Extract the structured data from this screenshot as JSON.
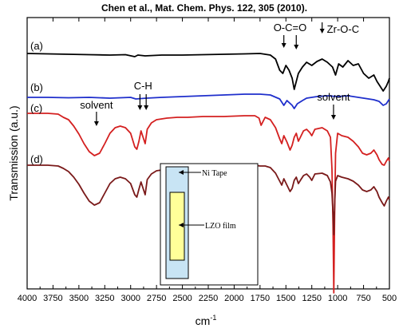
{
  "citation": "Chen et al., Mat. Chem. Phys. 122, 305 (2010).",
  "chart_data": {
    "type": "line",
    "title": "",
    "xlabel": "cm",
    "xlabel_superscript": "-1",
    "ylabel": "Transmission (a.u.)",
    "xlim": [
      4000,
      500
    ],
    "x_reversed": true,
    "x_ticks": [
      4000,
      3750,
      3500,
      3250,
      3000,
      2750,
      2500,
      2250,
      2000,
      1750,
      1500,
      1250,
      1000,
      750,
      500
    ],
    "y_ticks_shown": false,
    "grid": false,
    "series": [
      {
        "label": "(a)",
        "color": "#000000",
        "points": [
          [
            4000,
            45
          ],
          [
            3800,
            45.5
          ],
          [
            3600,
            46
          ],
          [
            3400,
            46.5
          ],
          [
            3200,
            47
          ],
          [
            3050,
            46.5
          ],
          [
            2960,
            49
          ],
          [
            2930,
            47
          ],
          [
            2860,
            48
          ],
          [
            2700,
            47
          ],
          [
            2500,
            47
          ],
          [
            2300,
            46.5
          ],
          [
            2100,
            46
          ],
          [
            1900,
            45.5
          ],
          [
            1750,
            45
          ],
          [
            1650,
            47
          ],
          [
            1600,
            52
          ],
          [
            1560,
            66
          ],
          [
            1530,
            70
          ],
          [
            1500,
            60
          ],
          [
            1470,
            66
          ],
          [
            1440,
            76
          ],
          [
            1420,
            90
          ],
          [
            1400,
            80
          ],
          [
            1380,
            70
          ],
          [
            1340,
            62
          ],
          [
            1300,
            56
          ],
          [
            1250,
            60
          ],
          [
            1200,
            55
          ],
          [
            1150,
            52
          ],
          [
            1100,
            56
          ],
          [
            1050,
            62
          ],
          [
            1020,
            72
          ],
          [
            990,
            58
          ],
          [
            950,
            62
          ],
          [
            900,
            54
          ],
          [
            850,
            60
          ],
          [
            800,
            58
          ],
          [
            750,
            70
          ],
          [
            700,
            76
          ],
          [
            650,
            72
          ],
          [
            620,
            80
          ],
          [
            600,
            84
          ],
          [
            560,
            92
          ],
          [
            530,
            86
          ],
          [
            510,
            80
          ],
          [
            500,
            76
          ]
        ]
      },
      {
        "label": "(b)",
        "color": "#1f2fcc",
        "points": [
          [
            4000,
            100
          ],
          [
            3800,
            100
          ],
          [
            3600,
            100.5
          ],
          [
            3400,
            100
          ],
          [
            3200,
            101
          ],
          [
            3000,
            100
          ],
          [
            2950,
            102
          ],
          [
            2850,
            101
          ],
          [
            2700,
            100
          ],
          [
            2500,
            99
          ],
          [
            2300,
            98
          ],
          [
            2100,
            97
          ],
          [
            1900,
            96
          ],
          [
            1750,
            96
          ],
          [
            1650,
            97
          ],
          [
            1560,
            102
          ],
          [
            1520,
            110
          ],
          [
            1490,
            104
          ],
          [
            1440,
            110
          ],
          [
            1420,
            114
          ],
          [
            1390,
            108
          ],
          [
            1340,
            104
          ],
          [
            1300,
            101
          ],
          [
            1250,
            100
          ],
          [
            1200,
            99
          ],
          [
            1100,
            98
          ],
          [
            1000,
            99
          ],
          [
            900,
            98
          ],
          [
            800,
            100
          ],
          [
            700,
            102
          ],
          [
            650,
            103
          ],
          [
            600,
            105
          ],
          [
            560,
            110
          ],
          [
            530,
            108
          ],
          [
            510,
            104
          ],
          [
            500,
            102
          ]
        ]
      },
      {
        "label": "(c)",
        "color": "#d42020",
        "points": [
          [
            4000,
            120
          ],
          [
            3800,
            120
          ],
          [
            3700,
            121
          ],
          [
            3650,
            125
          ],
          [
            3600,
            128
          ],
          [
            3550,
            136
          ],
          [
            3500,
            146
          ],
          [
            3450,
            158
          ],
          [
            3400,
            168
          ],
          [
            3350,
            173
          ],
          [
            3300,
            170
          ],
          [
            3250,
            158
          ],
          [
            3200,
            145
          ],
          [
            3150,
            138
          ],
          [
            3100,
            136
          ],
          [
            3050,
            138
          ],
          [
            3000,
            145
          ],
          [
            2960,
            162
          ],
          [
            2940,
            165
          ],
          [
            2920,
            155
          ],
          [
            2900,
            142
          ],
          [
            2880,
            150
          ],
          [
            2860,
            158
          ],
          [
            2840,
            140
          ],
          [
            2800,
            132
          ],
          [
            2750,
            128
          ],
          [
            2700,
            127
          ],
          [
            2650,
            126
          ],
          [
            2550,
            125
          ],
          [
            2450,
            125
          ],
          [
            2300,
            124
          ],
          [
            2100,
            124
          ],
          [
            1900,
            123
          ],
          [
            1800,
            123
          ],
          [
            1760,
            126
          ],
          [
            1740,
            135
          ],
          [
            1720,
            130
          ],
          [
            1700,
            125
          ],
          [
            1650,
            128
          ],
          [
            1600,
            138
          ],
          [
            1560,
            152
          ],
          [
            1540,
            158
          ],
          [
            1520,
            148
          ],
          [
            1490,
            156
          ],
          [
            1460,
            166
          ],
          [
            1440,
            160
          ],
          [
            1420,
            150
          ],
          [
            1400,
            145
          ],
          [
            1380,
            155
          ],
          [
            1360,
            150
          ],
          [
            1330,
            142
          ],
          [
            1300,
            140
          ],
          [
            1270,
            144
          ],
          [
            1250,
            148
          ],
          [
            1220,
            140
          ],
          [
            1150,
            138
          ],
          [
            1100,
            142
          ],
          [
            1070,
            150
          ],
          [
            1055,
            190
          ],
          [
            1045,
            260
          ],
          [
            1037,
            345
          ],
          [
            1030,
            250
          ],
          [
            1020,
            170
          ],
          [
            1000,
            145
          ],
          [
            960,
            148
          ],
          [
            900,
            150
          ],
          [
            850,
            155
          ],
          [
            800,
            162
          ],
          [
            760,
            170
          ],
          [
            720,
            172
          ],
          [
            680,
            170
          ],
          [
            650,
            166
          ],
          [
            620,
            172
          ],
          [
            600,
            178
          ],
          [
            570,
            184
          ],
          [
            550,
            185
          ],
          [
            530,
            180
          ],
          [
            510,
            176
          ],
          [
            500,
            180
          ]
        ]
      },
      {
        "label": "(d)",
        "color": "#7a1a1a",
        "points": [
          [
            4000,
            185
          ],
          [
            3800,
            185
          ],
          [
            3700,
            186
          ],
          [
            3650,
            189
          ],
          [
            3600,
            193
          ],
          [
            3550,
            200
          ],
          [
            3500,
            209
          ],
          [
            3450,
            220
          ],
          [
            3400,
            230
          ],
          [
            3350,
            235
          ],
          [
            3300,
            232
          ],
          [
            3250,
            220
          ],
          [
            3200,
            208
          ],
          [
            3150,
            202
          ],
          [
            3100,
            200
          ],
          [
            3050,
            202
          ],
          [
            3000,
            208
          ],
          [
            2960,
            222
          ],
          [
            2940,
            225
          ],
          [
            2920,
            215
          ],
          [
            2900,
            206
          ],
          [
            2880,
            214
          ],
          [
            2860,
            222
          ],
          [
            2840,
            203
          ],
          [
            2800,
            196
          ],
          [
            2750,
            192
          ],
          [
            2700,
            191
          ],
          [
            2650,
            190
          ],
          [
            2550,
            189
          ],
          [
            2450,
            189
          ],
          [
            2300,
            188
          ],
          [
            2100,
            187
          ],
          [
            1900,
            186
          ],
          [
            1800,
            185
          ],
          [
            1750,
            186
          ],
          [
            1700,
            186
          ],
          [
            1650,
            188
          ],
          [
            1600,
            195
          ],
          [
            1560,
            205
          ],
          [
            1540,
            210
          ],
          [
            1520,
            202
          ],
          [
            1490,
            210
          ],
          [
            1460,
            218
          ],
          [
            1440,
            214
          ],
          [
            1420,
            204
          ],
          [
            1400,
            200
          ],
          [
            1380,
            208
          ],
          [
            1360,
            204
          ],
          [
            1330,
            198
          ],
          [
            1300,
            196
          ],
          [
            1270,
            200
          ],
          [
            1250,
            204
          ],
          [
            1220,
            196
          ],
          [
            1150,
            195
          ],
          [
            1100,
            198
          ],
          [
            1070,
            206
          ],
          [
            1055,
            220
          ],
          [
            1045,
            245
          ],
          [
            1037,
            272
          ],
          [
            1030,
            235
          ],
          [
            1020,
            205
          ],
          [
            1000,
            198
          ],
          [
            960,
            200
          ],
          [
            900,
            202
          ],
          [
            850,
            205
          ],
          [
            800,
            210
          ],
          [
            760,
            216
          ],
          [
            720,
            218
          ],
          [
            680,
            216
          ],
          [
            650,
            212
          ],
          [
            620,
            218
          ],
          [
            600,
            225
          ],
          [
            570,
            232
          ],
          [
            550,
            236
          ],
          [
            530,
            230
          ],
          [
            510,
            225
          ],
          [
            500,
            228
          ]
        ]
      }
    ],
    "annotations": [
      {
        "text": "O-C=O",
        "x": 1460
      },
      {
        "text": "Zr-O-C",
        "x": 1150
      },
      {
        "text": "solvent",
        "x": 3330
      },
      {
        "text": "C-H",
        "x": 2880
      },
      {
        "text": "solvent",
        "x": 1040
      }
    ],
    "inset": {
      "tape_label": "Ni Tape",
      "film_label": "LZO film",
      "tape_color": "#c8e4f4",
      "film_color": "#ffff99"
    }
  }
}
